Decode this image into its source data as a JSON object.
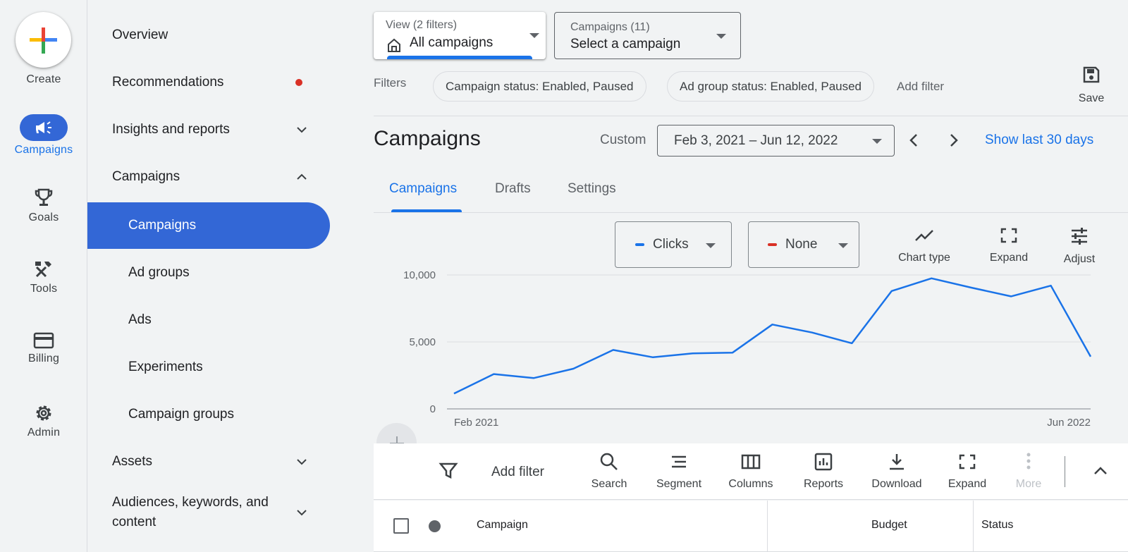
{
  "rail": {
    "create": "Create",
    "campaigns": "Campaigns",
    "goals": "Goals",
    "tools": "Tools",
    "billing": "Billing",
    "admin": "Admin"
  },
  "nav": {
    "overview": "Overview",
    "recommendations": "Recommendations",
    "insights": "Insights and reports",
    "campaigns_group": "Campaigns",
    "campaigns": "Campaigns",
    "ad_groups": "Ad groups",
    "ads": "Ads",
    "experiments": "Experiments",
    "campaign_groups": "Campaign groups",
    "assets": "Assets",
    "audiences_line1": "Audiences, keywords, and",
    "audiences_line2": "content"
  },
  "view": {
    "label": "View (2 filters)",
    "value": "All campaigns"
  },
  "campaign_select": {
    "label": "Campaigns (11)",
    "value": "Select a campaign"
  },
  "filters": {
    "label": "Filters",
    "chips": [
      "Campaign status: Enabled, Paused",
      "Ad group status: Enabled, Paused"
    ],
    "add": "Add filter",
    "save": "Save"
  },
  "header": {
    "title": "Campaigns",
    "custom": "Custom",
    "date_range": "Feb 3, 2021 – Jun 12, 2022",
    "show_last": "Show last 30 days"
  },
  "tabs": [
    "Campaigns",
    "Drafts",
    "Settings"
  ],
  "chart_controls": {
    "metric1": "Clicks",
    "metric1_color": "#1a73e8",
    "metric2": "None",
    "metric2_color": "#d93025",
    "chart_type": "Chart type",
    "expand": "Expand",
    "adjust": "Adjust"
  },
  "chart_data": {
    "type": "line",
    "x_start_label": "Feb 2021",
    "x_end_label": "Jun 2022",
    "y_ticks": [
      "10,000",
      "5,000",
      "0"
    ],
    "ylim": [
      0,
      10000
    ],
    "series": [
      {
        "values": [
          1150,
          2600,
          2300,
          3000,
          4400,
          3850,
          4150,
          4200,
          6300,
          5700,
          4900,
          8800,
          9750,
          9050,
          8400,
          9200,
          3900
        ]
      }
    ]
  },
  "toolbar": {
    "add_filter": "Add filter",
    "search": "Search",
    "segment": "Segment",
    "columns": "Columns",
    "reports": "Reports",
    "download": "Download",
    "expand": "Expand",
    "more": "More"
  },
  "table": {
    "columns": [
      "Campaign",
      "Budget",
      "Status"
    ]
  }
}
